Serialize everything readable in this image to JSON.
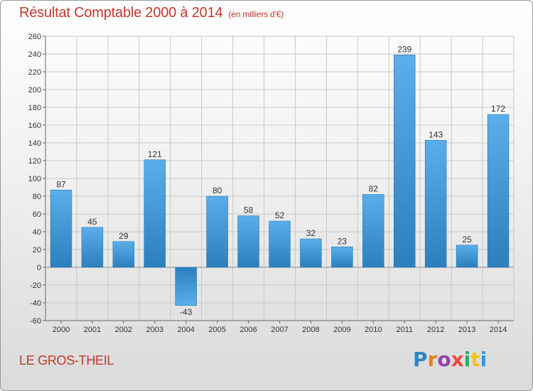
{
  "header": {
    "title": "Résultat Comptable 2000 à 2014",
    "subtitle": "(en milliers d'€)"
  },
  "footer": {
    "commune": "LE GROS-THEIL",
    "logo": "Proxiti"
  },
  "colors": {
    "title": "#c0392b",
    "bar_top": "#5aaeea",
    "bar_bottom": "#2c7fbd",
    "logo_letters": [
      "#2e86c1",
      "#e67e22",
      "#8e44ad",
      "#e74c3c",
      "#27ae60",
      "#f1c40f",
      "#3498db"
    ]
  },
  "chart_data": {
    "type": "bar",
    "title": "Résultat Comptable 2000 à 2014",
    "subtitle": "(en milliers d'€)",
    "xlabel": "",
    "ylabel": "",
    "categories": [
      "2000",
      "2001",
      "2002",
      "2003",
      "2004",
      "2005",
      "2006",
      "2007",
      "2008",
      "2009",
      "2010",
      "2011",
      "2012",
      "2013",
      "2014"
    ],
    "values": [
      87,
      45,
      29,
      121,
      -43,
      80,
      58,
      52,
      32,
      23,
      82,
      239,
      143,
      25,
      172
    ],
    "ylim": [
      -60,
      260
    ],
    "yticks": [
      -60,
      -40,
      -20,
      0,
      20,
      40,
      60,
      80,
      100,
      120,
      140,
      160,
      180,
      200,
      220,
      240,
      260
    ],
    "grid": true,
    "legend": "none"
  }
}
